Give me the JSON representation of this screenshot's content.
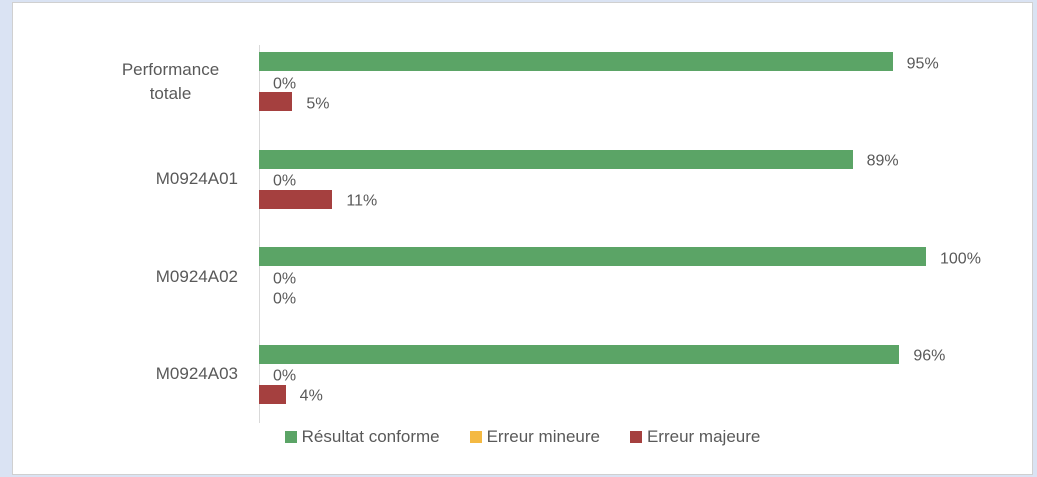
{
  "chart_data": {
    "type": "bar",
    "orientation": "horizontal",
    "categories": [
      "Performance totale",
      "M0924A01",
      "M0924A02",
      "M0924A03"
    ],
    "xlim": [
      0,
      100
    ],
    "series": [
      {
        "name": "Résultat conforme",
        "color": "#5ba466",
        "values": [
          95,
          89,
          100,
          96
        ],
        "value_labels": [
          "95%",
          "89%",
          "100%",
          "96%"
        ]
      },
      {
        "name": "Erreur mineure",
        "color": "#f4b942",
        "values": [
          0,
          0,
          0,
          0
        ],
        "value_labels": [
          "0%",
          "0%",
          "0%",
          "0%"
        ]
      },
      {
        "name": "Erreur majeure",
        "color": "#a5403f",
        "values": [
          5,
          11,
          0,
          4
        ],
        "value_labels": [
          "5%",
          "11%",
          "0%",
          "4%"
        ]
      }
    ],
    "legend": "bottom"
  }
}
